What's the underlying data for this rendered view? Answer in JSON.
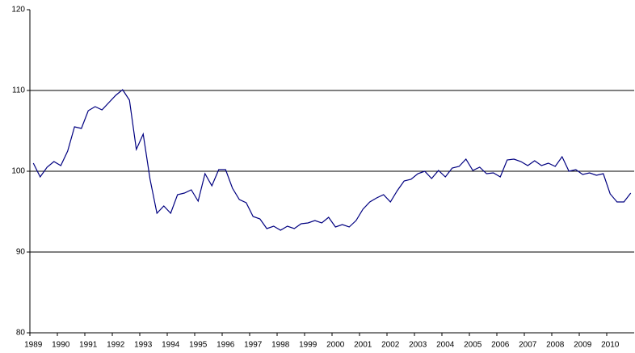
{
  "chart_data": {
    "type": "line",
    "categories": [
      "1989",
      null,
      null,
      null,
      "1990",
      null,
      null,
      null,
      "1991",
      null,
      null,
      null,
      "1992",
      null,
      null,
      null,
      "1993",
      null,
      null,
      null,
      "1994",
      null,
      null,
      null,
      "1995",
      null,
      null,
      null,
      "1996",
      null,
      null,
      null,
      "1997",
      null,
      null,
      null,
      "1998",
      null,
      null,
      null,
      "1999",
      null,
      null,
      null,
      "2000",
      null,
      null,
      null,
      "2001",
      null,
      null,
      null,
      "2002",
      null,
      null,
      null,
      "2003",
      null,
      null,
      null,
      "2004",
      null,
      null,
      null,
      "2005",
      null,
      null,
      null,
      "2006",
      null,
      null,
      null,
      "2007",
      null,
      null,
      null,
      "2008",
      null,
      null,
      null,
      "2009",
      null,
      null,
      null,
      "2010",
      null,
      null,
      null
    ],
    "values": [
      101.0,
      99.3,
      100.5,
      101.2,
      100.7,
      102.5,
      105.5,
      105.3,
      107.5,
      108.0,
      107.6,
      108.5,
      109.4,
      110.1,
      108.8,
      102.7,
      104.6,
      99.0,
      94.8,
      95.7,
      94.8,
      97.1,
      97.3,
      97.7,
      96.3,
      99.7,
      98.2,
      100.2,
      100.2,
      97.9,
      96.5,
      96.1,
      94.4,
      94.1,
      92.9,
      93.2,
      92.7,
      93.2,
      92.9,
      93.5,
      93.6,
      93.9,
      93.6,
      94.3,
      93.1,
      93.4,
      93.1,
      93.9,
      95.3,
      96.2,
      96.7,
      97.1,
      96.2,
      97.6,
      98.8,
      99.0,
      99.7,
      100.0,
      99.1,
      100.1,
      99.3,
      100.4,
      100.6,
      101.5,
      100.1,
      100.5,
      99.7,
      99.8,
      99.3,
      101.4,
      101.5,
      101.2,
      100.7,
      101.3,
      100.7,
      101.0,
      100.6,
      101.8,
      100.0,
      100.2,
      99.6,
      99.8,
      99.5,
      99.7,
      97.2,
      96.2,
      96.2,
      97.3
    ],
    "color": "#000080",
    "ylim": [
      80,
      120
    ],
    "yticks": [
      80,
      90,
      100,
      110,
      120
    ],
    "grid": true
  }
}
